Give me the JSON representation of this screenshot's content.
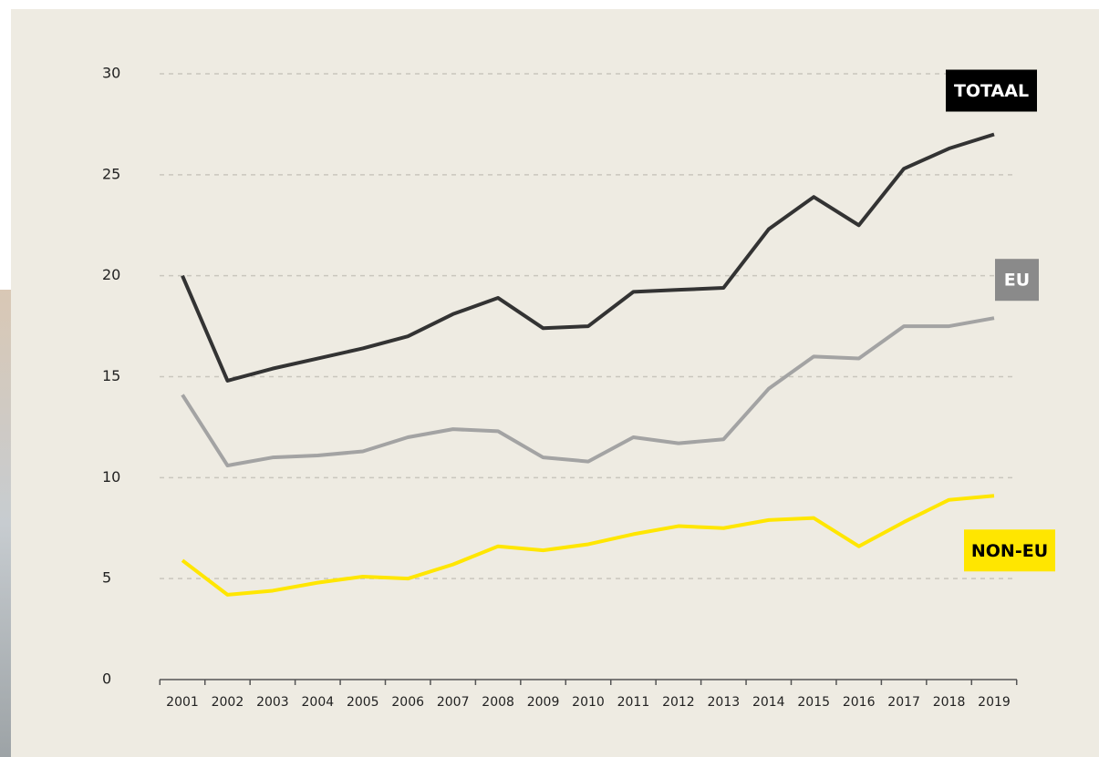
{
  "chart_data": {
    "type": "line",
    "categories": [
      "2001",
      "2002",
      "2003",
      "2004",
      "2005",
      "2006",
      "2007",
      "2008",
      "2009",
      "2010",
      "2011",
      "2012",
      "2013",
      "2014",
      "2015",
      "2016",
      "2017",
      "2018",
      "2019"
    ],
    "series": [
      {
        "name": "TOTAAL",
        "color": "#333333",
        "values": [
          20.0,
          14.8,
          15.4,
          15.9,
          16.4,
          17.0,
          18.1,
          18.9,
          17.4,
          17.5,
          19.2,
          19.3,
          19.4,
          22.3,
          23.9,
          22.5,
          25.3,
          26.3,
          27.0
        ]
      },
      {
        "name": "EU",
        "color": "#a3a3a3",
        "values": [
          14.1,
          10.6,
          11.0,
          11.1,
          11.3,
          12.0,
          12.4,
          12.3,
          11.0,
          10.8,
          12.0,
          11.7,
          11.9,
          14.4,
          16.0,
          15.9,
          17.5,
          17.5,
          17.9
        ]
      },
      {
        "name": "NON-EU",
        "color": "#ffe600",
        "values": [
          5.9,
          4.2,
          4.4,
          4.8,
          5.1,
          5.0,
          5.7,
          6.6,
          6.4,
          6.7,
          7.2,
          7.6,
          7.5,
          7.9,
          8.0,
          6.6,
          7.8,
          8.9,
          9.1
        ]
      }
    ],
    "ylim": [
      0,
      30
    ],
    "yticks": [
      0,
      5,
      10,
      15,
      20,
      25,
      30
    ],
    "grid": true
  }
}
